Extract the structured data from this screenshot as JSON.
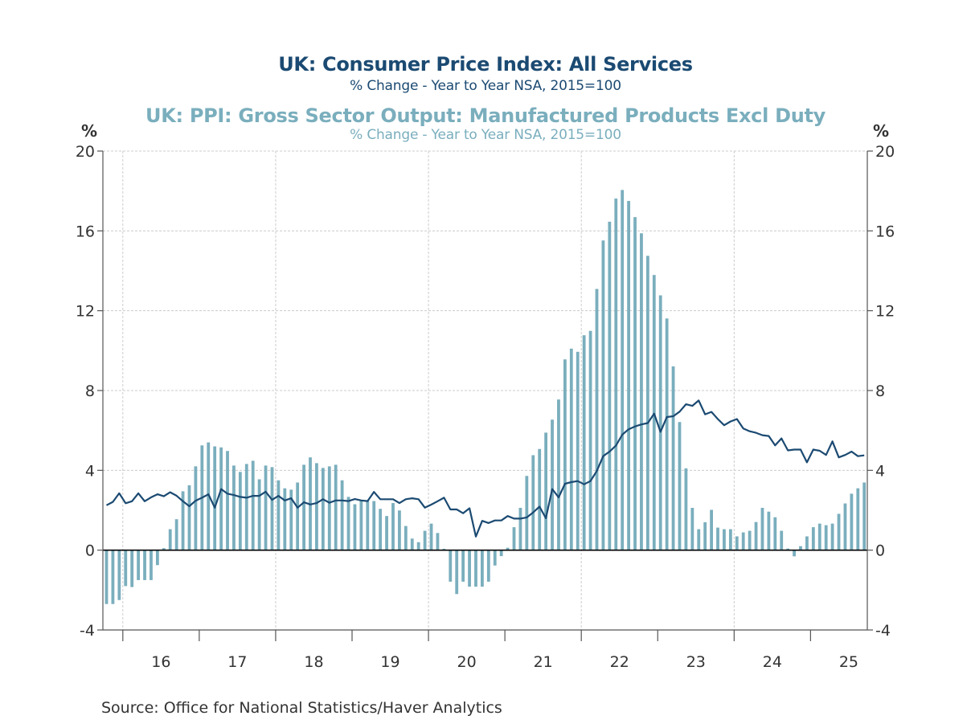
{
  "titles": {
    "title1": "UK: Consumer Price Index: All Services",
    "subtitle1": "% Change - Year to Year    NSA, 2015=100",
    "title2": "UK: PPI: Gross Sector Output: Manufactured Products Excl Duty",
    "subtitle2": "% Change - Year to Year    NSA, 2015=100"
  },
  "axis_units": {
    "left": "%",
    "right": "%"
  },
  "source": "Source:  Office for National Statistics/Haver Analytics",
  "colors": {
    "line": "#1b4a72",
    "bars": "#7aaebd",
    "zero_line": "#000000",
    "grid": "#cccccc",
    "axis": "#555555"
  },
  "chart_data": {
    "type": "bar+line",
    "title": "UK: Consumer Price Index: All Services / UK: PPI: Gross Sector Output: Manufactured Products Excl Duty",
    "xlabel": "",
    "ylabel": "%",
    "ylim": [
      -4,
      20
    ],
    "yticks": [
      -4,
      0,
      4,
      8,
      12,
      16,
      20
    ],
    "ytick_labels": [
      "-4",
      "0",
      "4",
      "8",
      "12",
      "16",
      "20"
    ],
    "x_start": "2015-10",
    "x_end": "2025-09",
    "frequency": "monthly",
    "xtick_labels": [
      "16",
      "17",
      "18",
      "19",
      "20",
      "21",
      "22",
      "23",
      "24",
      "25"
    ],
    "grid": true,
    "legend": "titles at top",
    "series": [
      {
        "name": "UK: Consumer Price Index: All Services (% Change - Year to Year, NSA, 2015=100)",
        "type": "line",
        "axis": "left",
        "values": [
          2.25,
          2.42,
          2.85,
          2.35,
          2.45,
          2.85,
          2.45,
          2.65,
          2.8,
          2.7,
          2.9,
          2.73,
          2.45,
          2.2,
          2.48,
          2.63,
          2.8,
          2.13,
          3.06,
          2.83,
          2.76,
          2.67,
          2.63,
          2.72,
          2.72,
          2.93,
          2.52,
          2.72,
          2.49,
          2.6,
          2.13,
          2.4,
          2.29,
          2.36,
          2.55,
          2.38,
          2.49,
          2.49,
          2.46,
          2.56,
          2.49,
          2.46,
          2.92,
          2.55,
          2.55,
          2.55,
          2.36,
          2.55,
          2.6,
          2.55,
          2.13,
          2.28,
          2.45,
          2.63,
          2.04,
          2.04,
          1.85,
          2.1,
          0.68,
          1.47,
          1.36,
          1.49,
          1.49,
          1.71,
          1.58,
          1.58,
          1.64,
          1.89,
          2.18,
          1.6,
          3.06,
          2.65,
          3.33,
          3.41,
          3.46,
          3.3,
          3.46,
          3.97,
          4.71,
          4.94,
          5.24,
          5.79,
          6.06,
          6.2,
          6.3,
          6.37,
          6.84,
          5.93,
          6.67,
          6.71,
          6.94,
          7.31,
          7.23,
          7.5,
          6.81,
          6.93,
          6.57,
          6.26,
          6.45,
          6.57,
          6.1,
          5.96,
          5.88,
          5.76,
          5.72,
          5.25,
          5.6,
          5.0,
          5.04,
          5.04,
          4.4,
          5.04,
          4.98,
          4.77,
          5.45,
          4.65,
          4.77,
          4.94,
          4.71,
          4.75
        ]
      },
      {
        "name": "UK: PPI: Gross Sector Output: Manufactured Products Excl Duty (% Change - Year to Year, NSA, 2015=100)",
        "type": "bar",
        "axis": "right",
        "values": [
          -2.7,
          -2.7,
          -2.5,
          -1.8,
          -1.85,
          -1.5,
          -1.5,
          -1.5,
          -0.75,
          0.1,
          1.05,
          1.55,
          2.95,
          3.25,
          4.2,
          5.25,
          5.4,
          5.2,
          5.15,
          4.97,
          4.24,
          3.92,
          4.32,
          4.48,
          3.55,
          4.24,
          4.16,
          3.5,
          3.1,
          3.03,
          3.39,
          4.28,
          4.65,
          4.36,
          4.12,
          4.2,
          4.28,
          3.5,
          2.67,
          2.3,
          2.48,
          2.48,
          2.46,
          2.07,
          1.71,
          2.36,
          1.99,
          1.21,
          0.58,
          0.4,
          0.97,
          1.33,
          0.86,
          0.07,
          -1.58,
          -2.2,
          -1.58,
          -1.83,
          -1.83,
          -1.83,
          -1.58,
          -0.77,
          -0.3,
          0.12,
          1.15,
          2.12,
          3.72,
          4.76,
          5.07,
          5.89,
          6.54,
          7.55,
          9.56,
          10.1,
          9.94,
          10.77,
          10.99,
          13.09,
          15.52,
          16.46,
          17.62,
          18.05,
          17.5,
          16.69,
          15.88,
          14.75,
          13.79,
          12.77,
          11.61,
          9.21,
          6.42,
          4.1,
          2.12,
          1.05,
          1.4,
          2.02,
          1.13,
          1.05,
          1.05,
          0.69,
          0.89,
          0.97,
          1.41,
          2.12,
          1.93,
          1.65,
          0.97,
          0.08,
          -0.31,
          0.2,
          0.69,
          1.15,
          1.33,
          1.25,
          1.33,
          1.82,
          2.34,
          2.83,
          3.1,
          3.39
        ]
      }
    ]
  }
}
